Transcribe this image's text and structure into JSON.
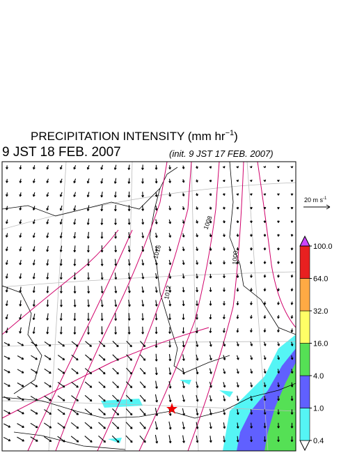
{
  "header": {
    "title": {
      "text": "PRECIPITATION INTENSITY (mm hr",
      "exponent": "−1",
      "close": ")"
    },
    "valid_time": "9 JST 18 FEB. 2007",
    "init_time": "(init. 9 JST 17 FEB. 2007)"
  },
  "wind_scale": {
    "text": "20 m s",
    "exponent": "-1"
  },
  "contour_labels": [
    "1016",
    "1012",
    "1008",
    "1000"
  ],
  "colorbar": {
    "levels": [
      {
        "value": 0.4,
        "label": "0.4"
      },
      {
        "value": 1,
        "label": "1.0"
      },
      {
        "value": 4,
        "label": "4.0"
      },
      {
        "value": 16,
        "label": "16.0"
      },
      {
        "value": 32,
        "label": "32.0"
      },
      {
        "value": 64,
        "label": "64.0"
      },
      {
        "value": 100,
        "label": "100.0"
      }
    ],
    "colors": [
      "#ffffff",
      "#55f5f5",
      "#6060ff",
      "#55e055",
      "#ffff66",
      "#ffaa44",
      "#e82020",
      "#cc44ff"
    ]
  }
}
